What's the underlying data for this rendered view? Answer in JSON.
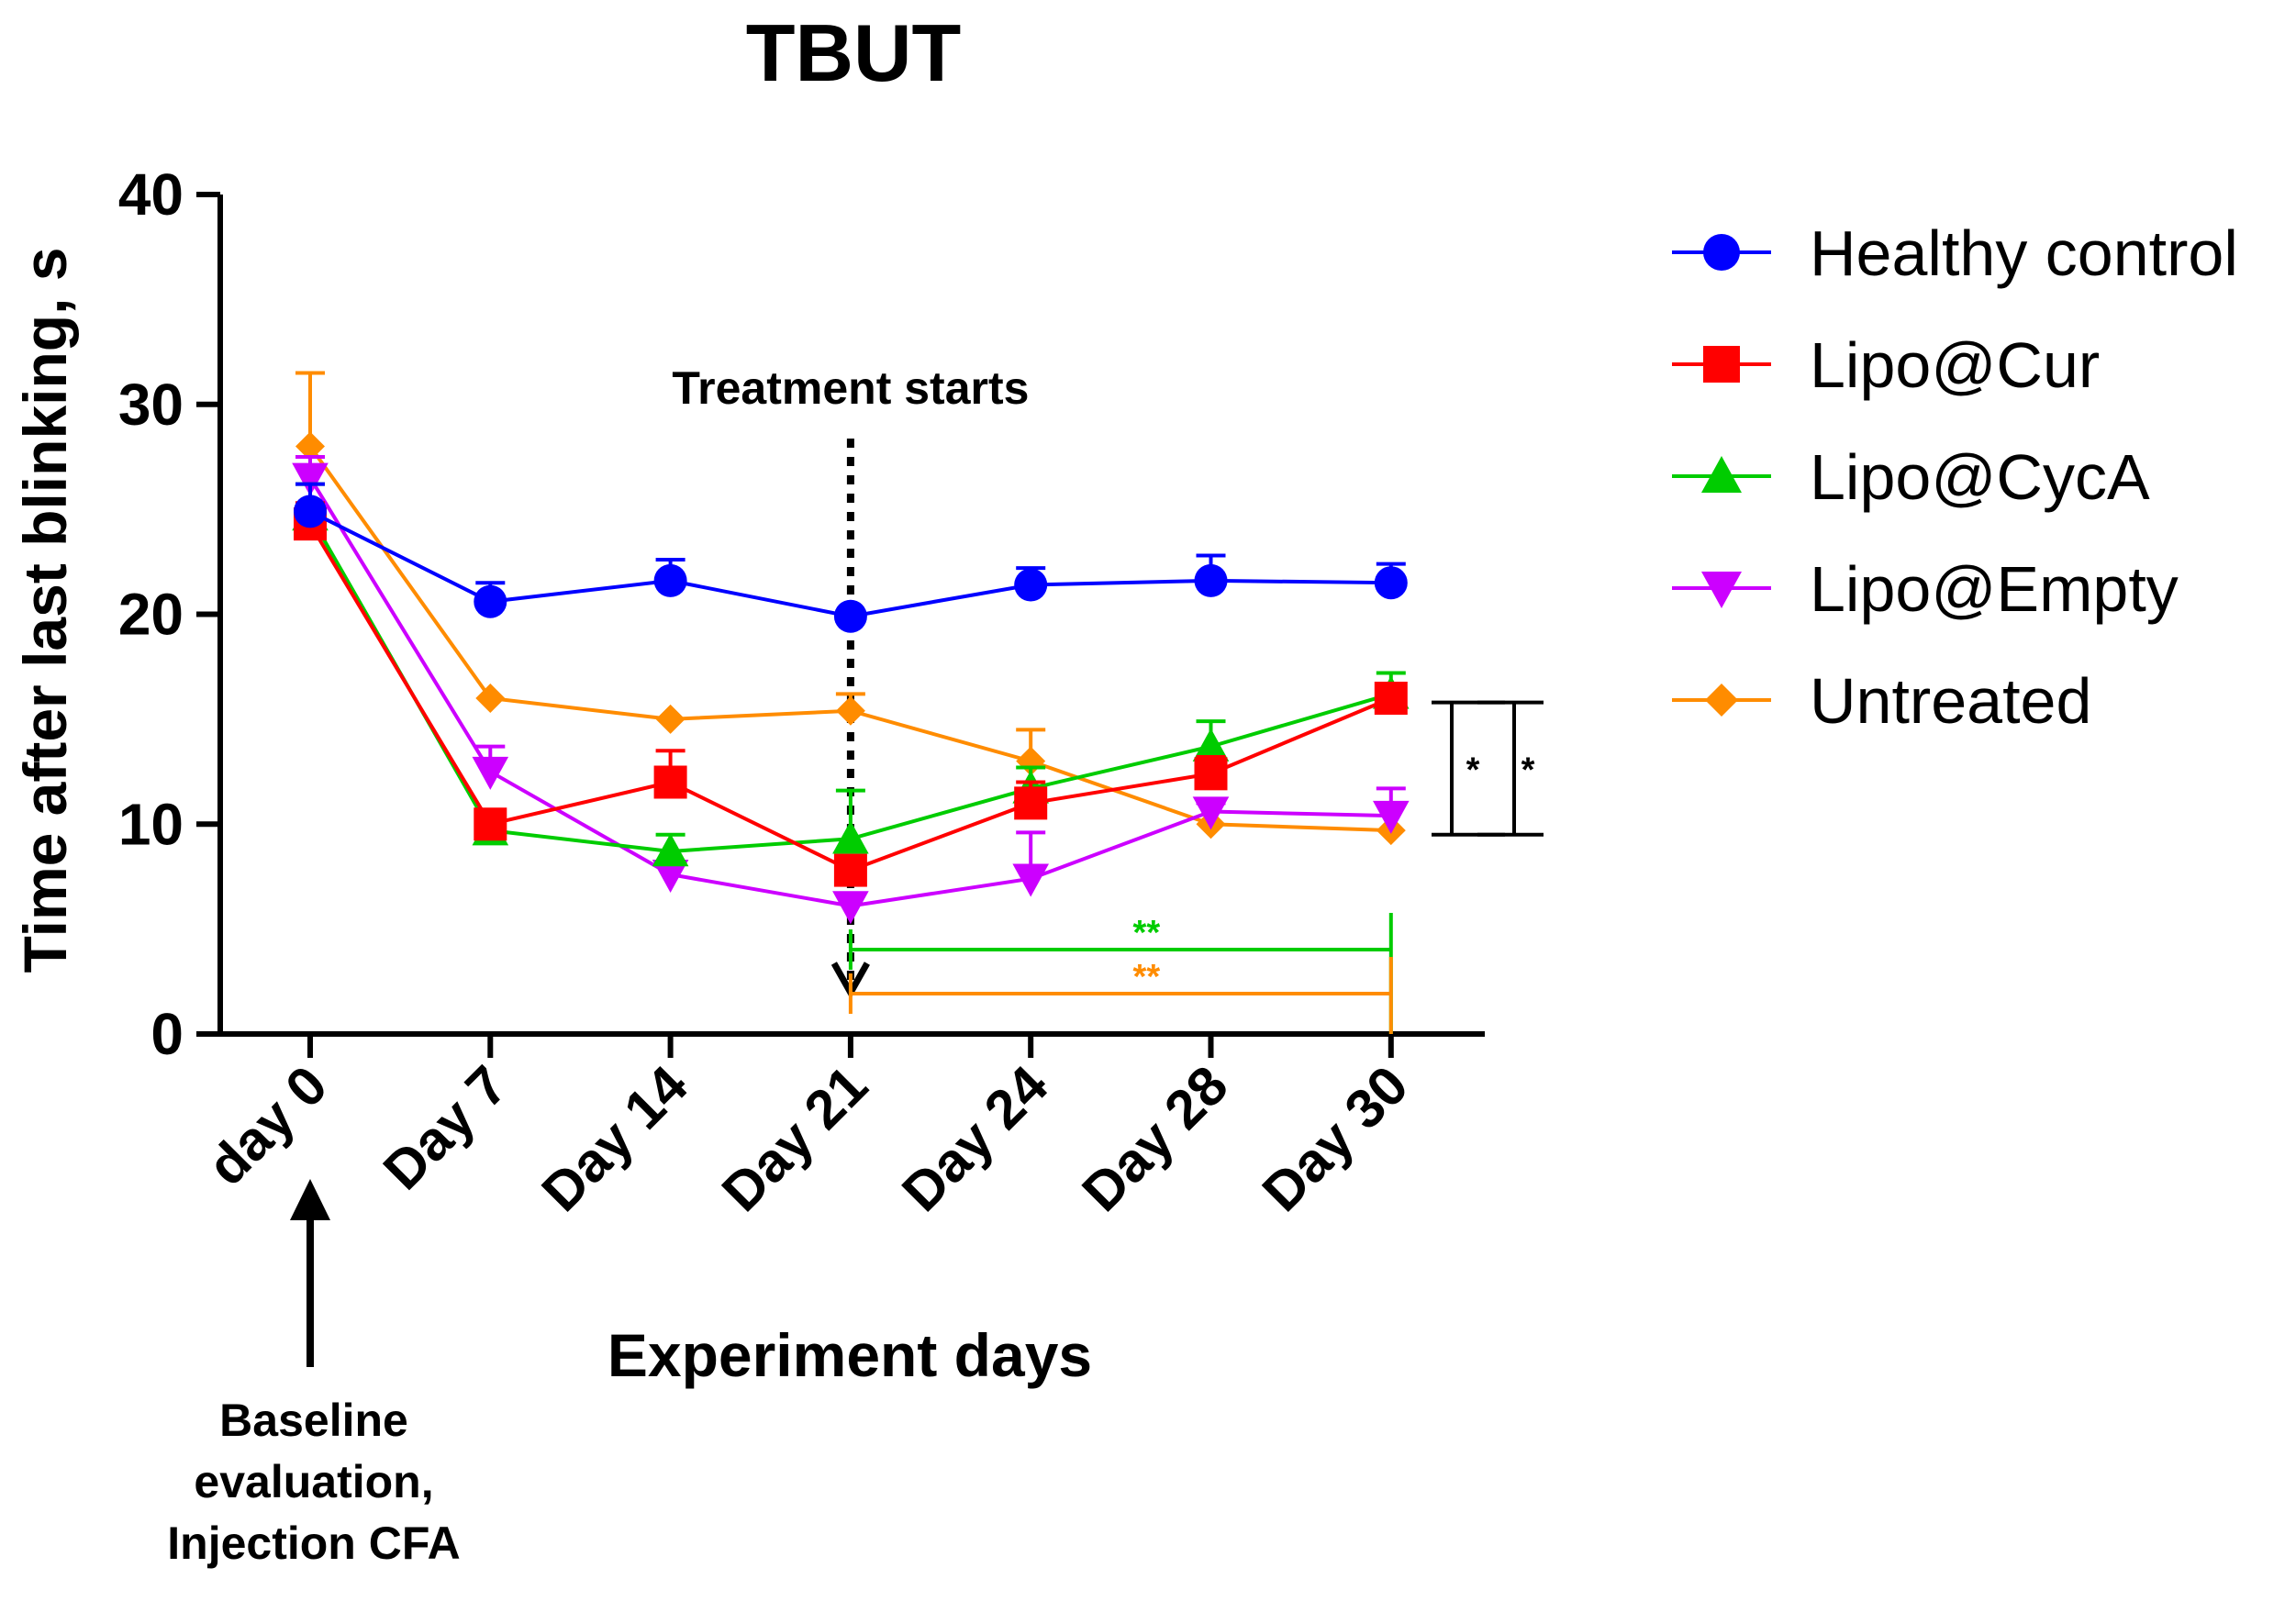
{
  "chart_data": {
    "type": "line",
    "title": "TBUT",
    "xlabel": "Experiment days",
    "ylabel": "Time after last blinking, s",
    "categories": [
      "day 0",
      "Day 7",
      "Day 14",
      "Day 21",
      "Day 24",
      "Day 28",
      "Day 30"
    ],
    "ylim": [
      0,
      40
    ],
    "yticks": [
      0,
      10,
      20,
      30,
      40
    ],
    "grid": false,
    "legend_position": "right",
    "series": [
      {
        "name": "Healthy control",
        "color": "#0000ff",
        "marker": "circle",
        "values": [
          24.9,
          20.6,
          21.6,
          19.9,
          21.4,
          21.6,
          21.5
        ],
        "errors": [
          1.3,
          0.9,
          1.0,
          0.0,
          0.8,
          1.2,
          0.9
        ]
      },
      {
        "name": "Lipo@Cur",
        "color": "#ff0000",
        "marker": "square",
        "values": [
          24.3,
          10.0,
          12.0,
          7.8,
          11.0,
          12.4,
          16.0
        ],
        "errors": [
          1.0,
          0.0,
          1.5,
          0.0,
          1.0,
          0.8,
          0.5
        ]
      },
      {
        "name": "Lipo@CycA",
        "color": "#00cc00",
        "marker": "triangle-up",
        "values": [
          24.7,
          9.7,
          8.7,
          9.3,
          11.7,
          13.7,
          16.2
        ],
        "errors": [
          1.5,
          0.0,
          0.8,
          2.3,
          1.0,
          1.2,
          1.0
        ]
      },
      {
        "name": "Lipo@Empty",
        "color": "#cc00ff",
        "marker": "triangle-down",
        "values": [
          26.5,
          12.5,
          7.6,
          6.1,
          7.4,
          10.6,
          10.4
        ],
        "errors": [
          1.0,
          1.2,
          0.0,
          0.0,
          2.2,
          0.4,
          1.3
        ]
      },
      {
        "name": "Untreated",
        "color": "#ff8c00",
        "marker": "diamond",
        "values": [
          28.0,
          16.0,
          15.0,
          15.4,
          13.0,
          10.0,
          9.7
        ],
        "errors": [
          3.5,
          0.0,
          0.0,
          0.8,
          1.5,
          0.0,
          0.0
        ]
      }
    ],
    "annotations": {
      "treatment": "Treatment starts",
      "baseline": [
        "Baseline",
        "evaluation,",
        "Injection CFA"
      ],
      "sig_star": "*",
      "sig_double_star": "**"
    }
  }
}
